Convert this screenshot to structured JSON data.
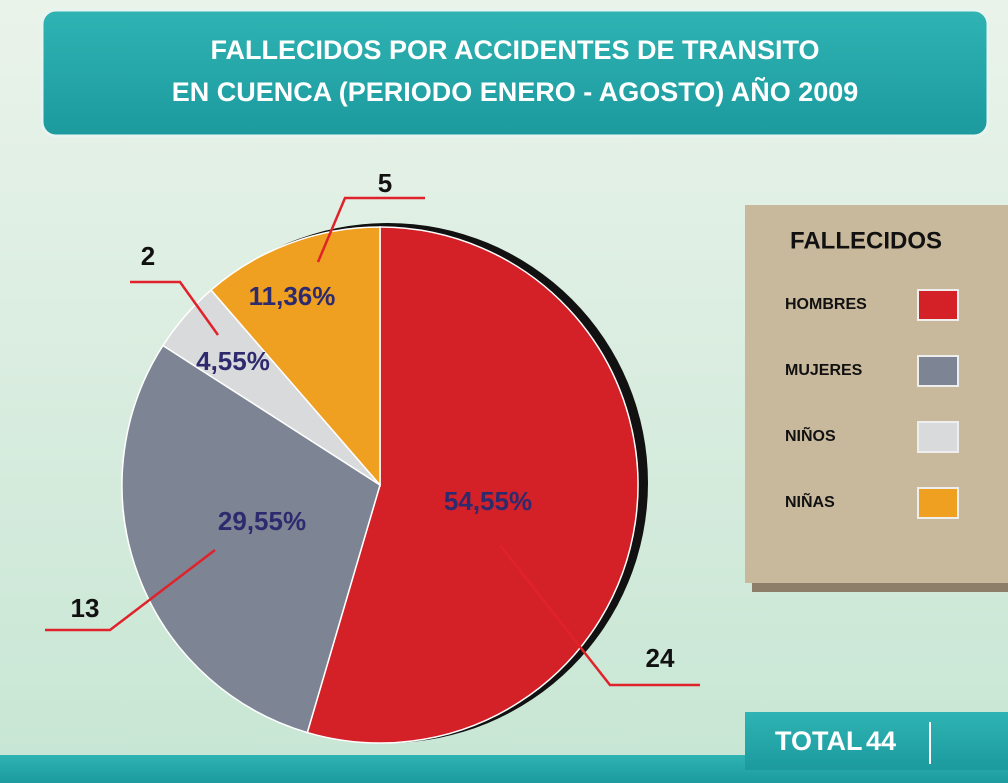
{
  "chart_data": {
    "type": "pie",
    "title": [
      "FALLECIDOS POR ACCIDENTES DE TRANSITO",
      "EN CUENCA (PERIODO ENERO - AGOSTO) AÑO 2009"
    ],
    "legend_title": "FALLECIDOS",
    "categories": [
      "HOMBRES",
      "MUJERES",
      "NIÑOS",
      "NIÑAS"
    ],
    "values": [
      24,
      13,
      2,
      5
    ],
    "percentages": [
      54.55,
      29.55,
      4.55,
      11.36
    ],
    "percentage_labels": [
      "54,55%",
      "29,55%",
      "4,55%",
      "11,36%"
    ],
    "colors": [
      "#d42128",
      "#7d8494",
      "#d9dadb",
      "#f0a020"
    ],
    "total_label": "TOTAL",
    "total": 44
  }
}
